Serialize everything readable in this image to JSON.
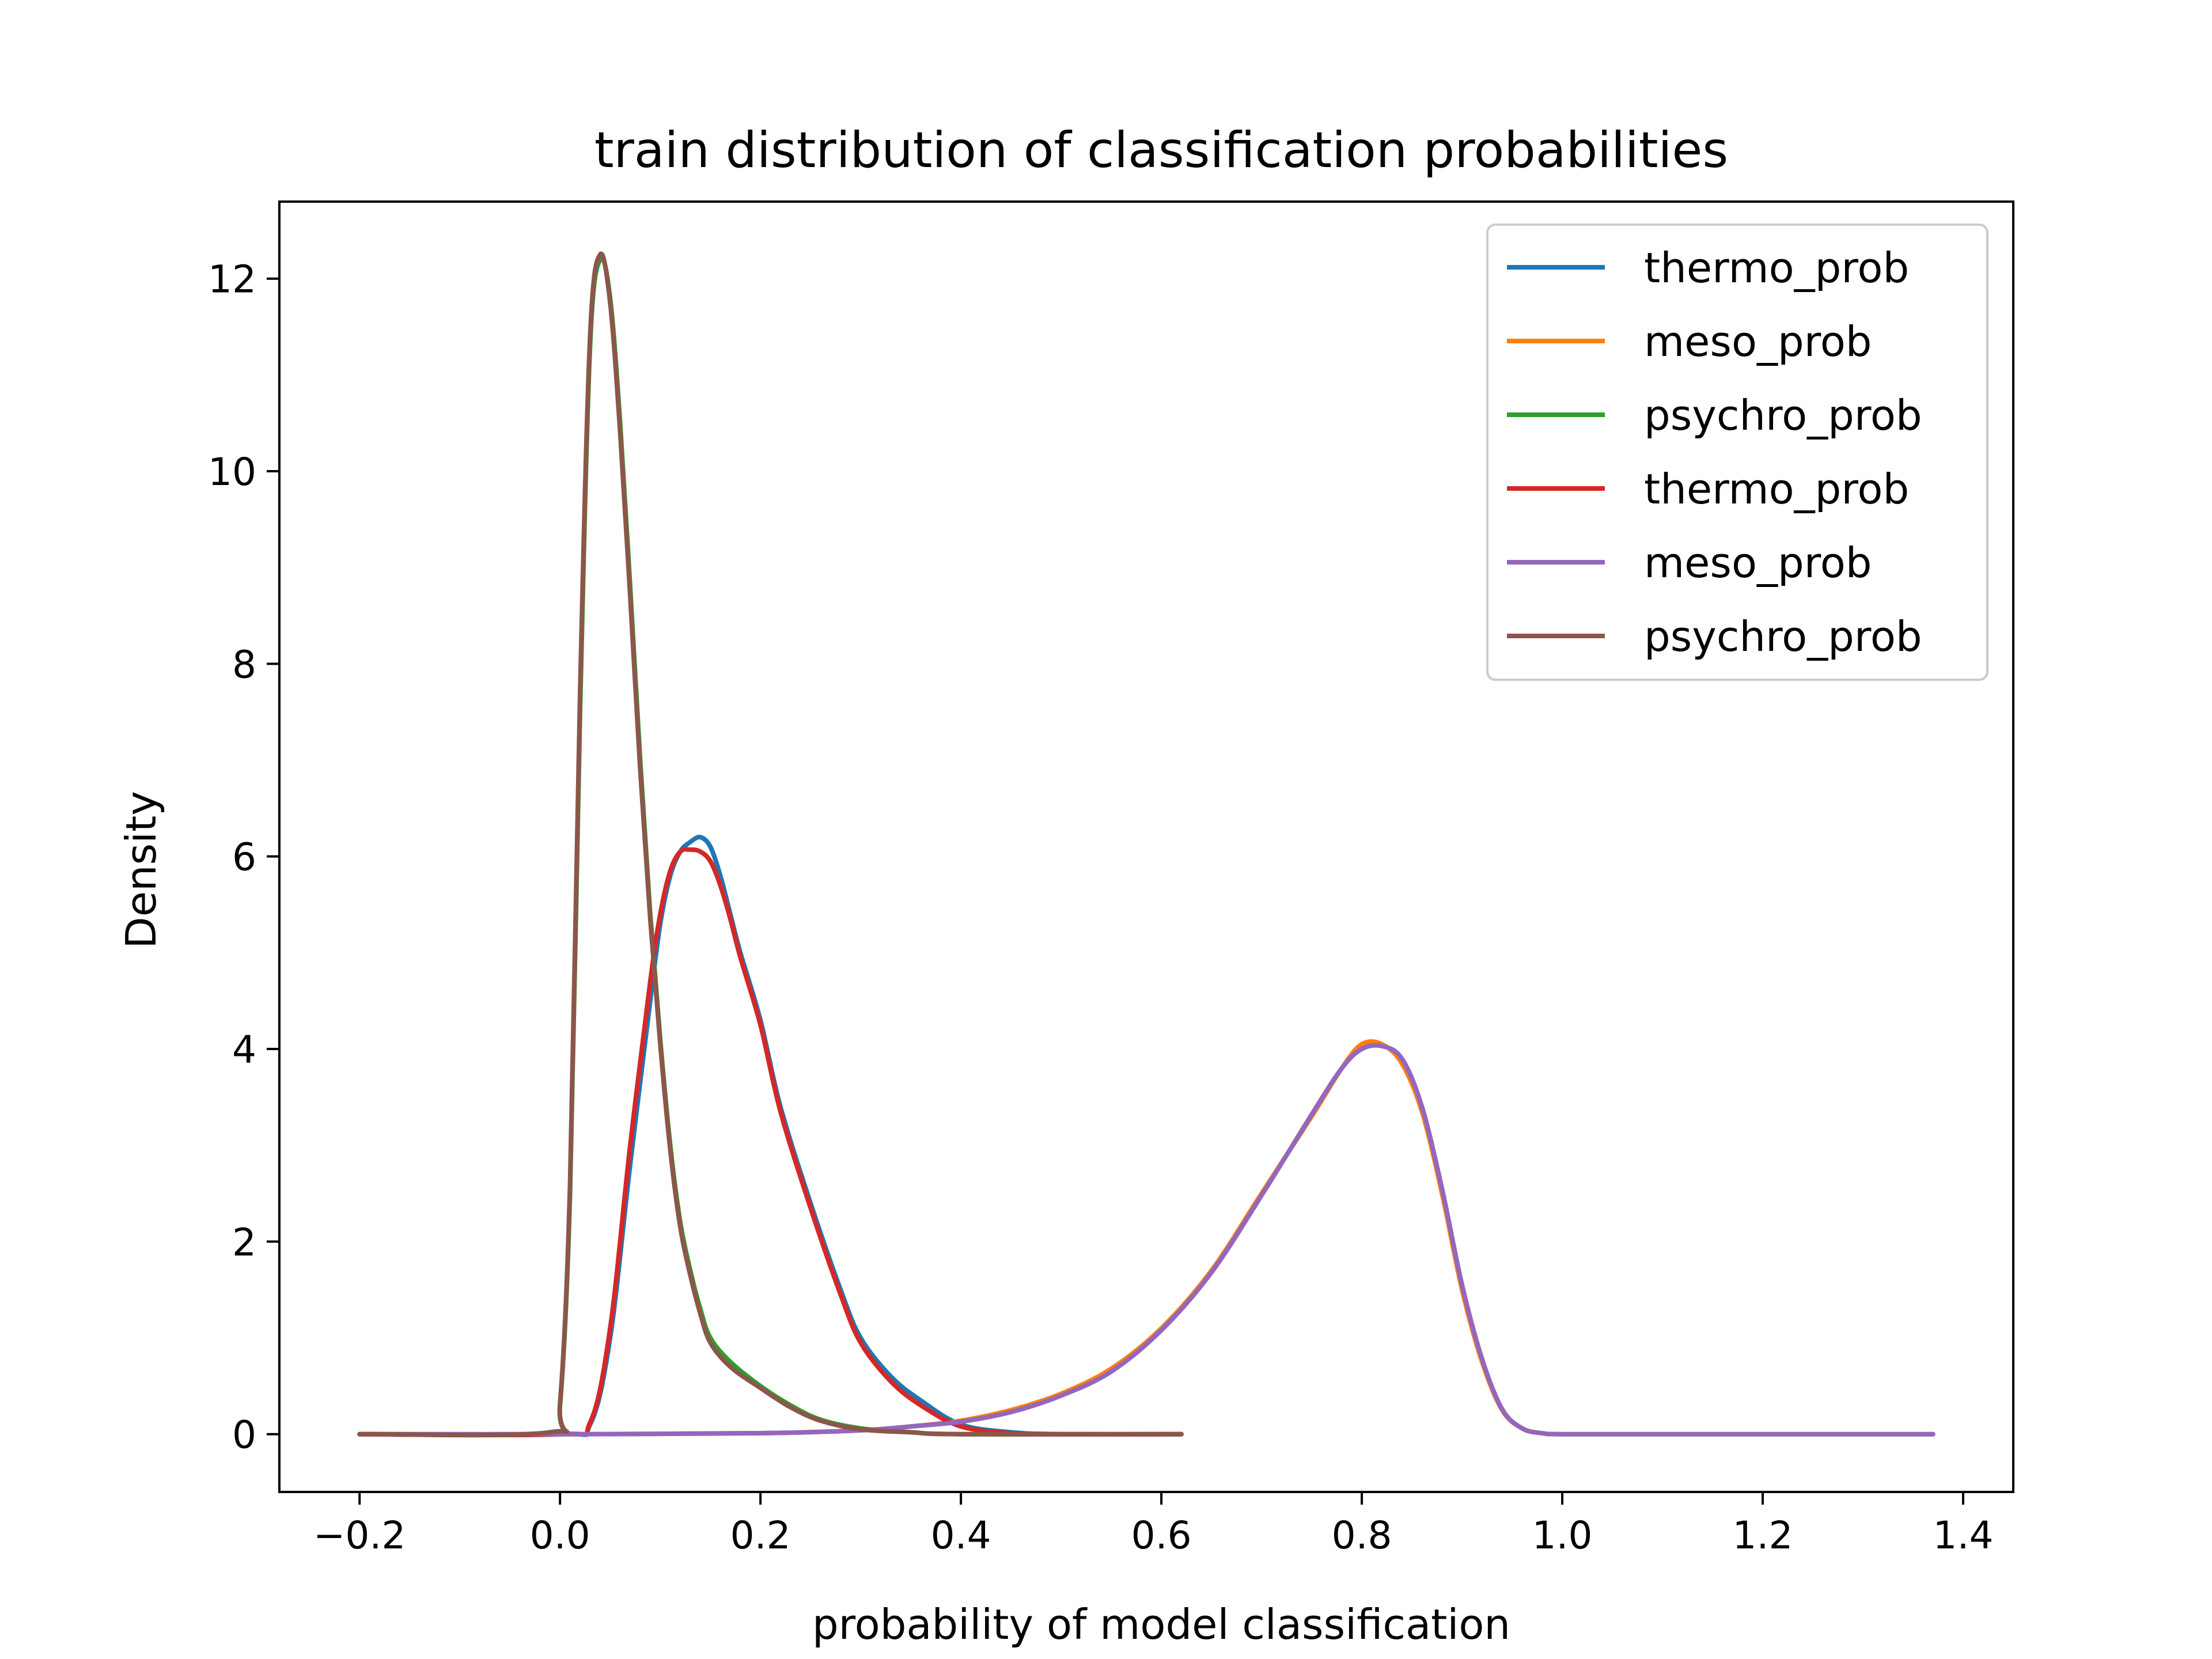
{
  "chart_data": {
    "type": "line",
    "title": "train distribution of classification probabilities",
    "xlabel": "probability of model classification",
    "ylabel": "Density",
    "xlim": [
      -0.28,
      1.45
    ],
    "ylim": [
      -0.6,
      12.8
    ],
    "x_ticks": [
      -0.2,
      0.0,
      0.2,
      0.4,
      0.6,
      0.8,
      1.0,
      1.2,
      1.4
    ],
    "x_tick_labels": [
      "−0.2",
      "0.0",
      "0.2",
      "0.4",
      "0.6",
      "0.8",
      "1.0",
      "1.2",
      "1.4"
    ],
    "y_ticks": [
      0,
      2,
      4,
      6,
      8,
      10,
      12
    ],
    "y_tick_labels": [
      "0",
      "2",
      "4",
      "6",
      "8",
      "10",
      "12"
    ],
    "grid": false,
    "legend_position": "top-right",
    "series": [
      {
        "name": "thermo_prob",
        "color": "#1f77b4",
        "x": [
          -0.2,
          0.0,
          0.03,
          0.05,
          0.07,
          0.09,
          0.1,
          0.11,
          0.12,
          0.13,
          0.14,
          0.15,
          0.16,
          0.17,
          0.18,
          0.2,
          0.22,
          0.25,
          0.28,
          0.3,
          0.33,
          0.36,
          0.4,
          0.45,
          0.5,
          0.62
        ],
        "y": [
          0,
          0,
          0.1,
          1.0,
          2.8,
          4.5,
          5.3,
          5.8,
          6.05,
          6.15,
          6.2,
          6.1,
          5.8,
          5.4,
          5.0,
          4.3,
          3.4,
          2.4,
          1.5,
          1.0,
          0.6,
          0.35,
          0.1,
          0.02,
          0,
          0
        ]
      },
      {
        "name": "meso_prob",
        "color": "#ff7f0e",
        "x": [
          -0.2,
          0.0,
          0.2,
          0.3,
          0.35,
          0.4,
          0.45,
          0.5,
          0.55,
          0.6,
          0.65,
          0.7,
          0.75,
          0.78,
          0.8,
          0.82,
          0.84,
          0.86,
          0.88,
          0.9,
          0.92,
          0.94,
          0.96,
          0.98,
          1.0,
          1.1,
          1.37
        ],
        "y": [
          0,
          0,
          0.01,
          0.04,
          0.08,
          0.14,
          0.25,
          0.42,
          0.68,
          1.1,
          1.7,
          2.5,
          3.3,
          3.8,
          4.05,
          4.05,
          3.85,
          3.35,
          2.5,
          1.5,
          0.75,
          0.25,
          0.06,
          0.01,
          0,
          0,
          0
        ]
      },
      {
        "name": "psychro_prob",
        "color": "#2ca02c",
        "x": [
          -0.2,
          -0.01,
          0.0,
          0.01,
          0.02,
          0.03,
          0.04,
          0.05,
          0.06,
          0.07,
          0.08,
          0.09,
          0.1,
          0.11,
          0.12,
          0.13,
          0.14,
          0.15,
          0.17,
          0.2,
          0.23,
          0.26,
          0.3,
          0.35,
          0.4,
          0.62
        ],
        "y": [
          0,
          0.02,
          0.3,
          2.5,
          7.5,
          11.3,
          12.2,
          11.8,
          10.5,
          8.8,
          7.0,
          5.4,
          4.1,
          3.0,
          2.2,
          1.7,
          1.3,
          1.0,
          0.75,
          0.5,
          0.3,
          0.15,
          0.06,
          0.02,
          0,
          0
        ]
      },
      {
        "name": "thermo_prob",
        "color": "#d62728",
        "x": [
          -0.2,
          0.0,
          0.03,
          0.05,
          0.07,
          0.09,
          0.1,
          0.11,
          0.12,
          0.13,
          0.14,
          0.15,
          0.16,
          0.17,
          0.18,
          0.2,
          0.22,
          0.25,
          0.28,
          0.3,
          0.33,
          0.36,
          0.4,
          0.45,
          0.5,
          0.62
        ],
        "y": [
          0,
          0,
          0.12,
          1.1,
          3.0,
          4.7,
          5.4,
          5.85,
          6.05,
          6.07,
          6.05,
          5.95,
          5.7,
          5.35,
          4.95,
          4.25,
          3.35,
          2.35,
          1.45,
          0.95,
          0.55,
          0.3,
          0.08,
          0.01,
          0,
          0
        ]
      },
      {
        "name": "meso_prob",
        "color": "#9467bd",
        "x": [
          -0.2,
          0.0,
          0.2,
          0.3,
          0.35,
          0.4,
          0.45,
          0.5,
          0.55,
          0.6,
          0.65,
          0.7,
          0.75,
          0.78,
          0.8,
          0.82,
          0.84,
          0.86,
          0.88,
          0.9,
          0.92,
          0.94,
          0.96,
          0.98,
          1.0,
          1.1,
          1.37
        ],
        "y": [
          0,
          0,
          0.01,
          0.04,
          0.08,
          0.13,
          0.23,
          0.4,
          0.65,
          1.08,
          1.68,
          2.48,
          3.32,
          3.8,
          4.0,
          4.03,
          3.9,
          3.4,
          2.55,
          1.55,
          0.78,
          0.26,
          0.06,
          0.01,
          0,
          0,
          0
        ]
      },
      {
        "name": "psychro_prob",
        "color": "#8c564b",
        "x": [
          -0.2,
          -0.01,
          0.0,
          0.01,
          0.02,
          0.03,
          0.04,
          0.05,
          0.06,
          0.07,
          0.08,
          0.09,
          0.1,
          0.11,
          0.12,
          0.13,
          0.14,
          0.15,
          0.17,
          0.2,
          0.23,
          0.26,
          0.3,
          0.35,
          0.4,
          0.62
        ],
        "y": [
          0,
          0.02,
          0.32,
          2.6,
          7.7,
          11.4,
          12.25,
          11.75,
          10.4,
          8.7,
          6.9,
          5.35,
          4.05,
          2.95,
          2.15,
          1.65,
          1.25,
          0.95,
          0.7,
          0.48,
          0.28,
          0.14,
          0.05,
          0.02,
          0,
          0
        ]
      }
    ]
  }
}
